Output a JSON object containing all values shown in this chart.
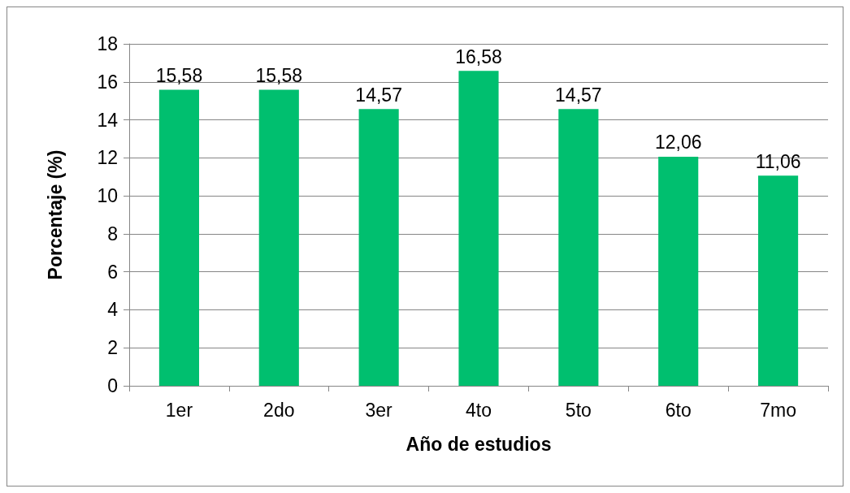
{
  "chart_data": {
    "type": "bar",
    "xlabel": "Año de estudios",
    "ylabel": "Porcentaje (%)",
    "categories": [
      "1er",
      "2do",
      "3er",
      "4to",
      "5to",
      "6to",
      "7mo"
    ],
    "values": [
      15.58,
      15.58,
      14.57,
      16.58,
      14.57,
      12.06,
      11.06
    ],
    "value_labels": [
      "15,58",
      "15,58",
      "14,57",
      "16,58",
      "14,57",
      "12,06",
      "11,06"
    ],
    "color": "#00bf6f",
    "ylim": [
      0,
      18
    ],
    "yticks": [
      0,
      2,
      4,
      6,
      8,
      10,
      12,
      14,
      16,
      18
    ],
    "grid": "y"
  }
}
